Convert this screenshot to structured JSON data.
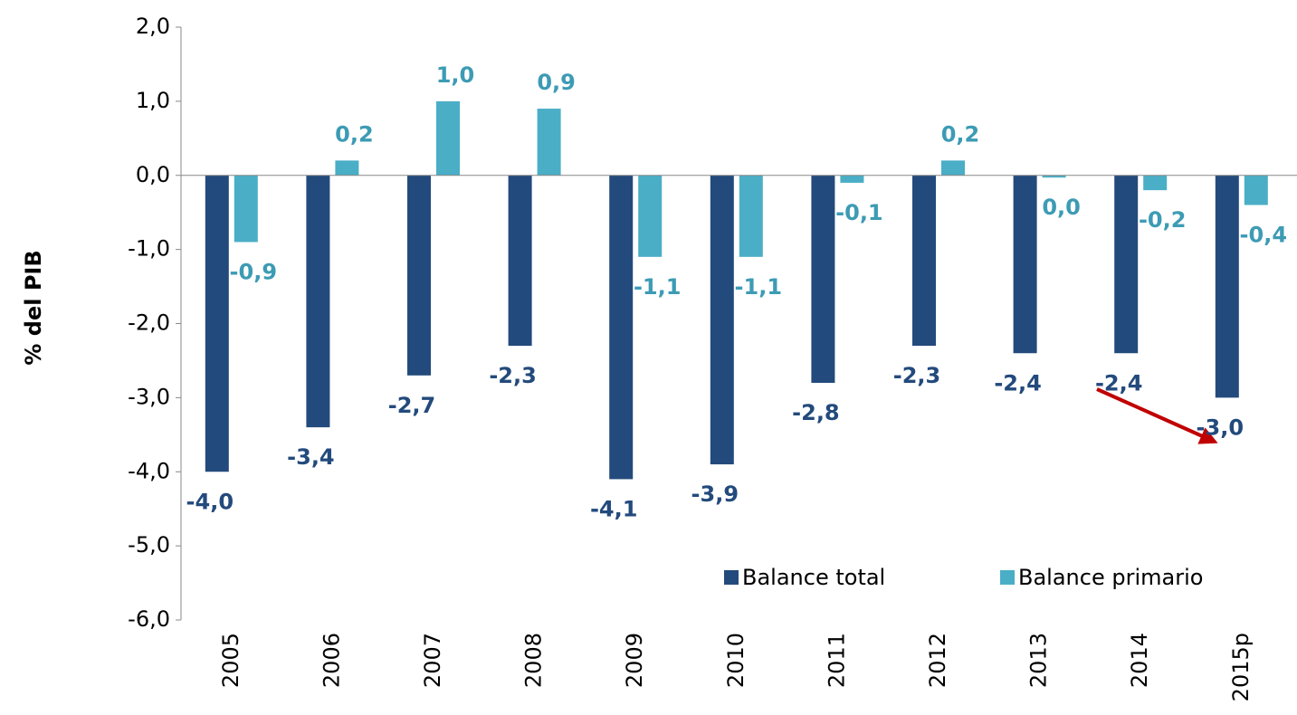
{
  "chart_data": {
    "type": "bar",
    "y_label": "% del PIB",
    "categories": [
      "2005",
      "2006",
      "2007",
      "2008",
      "2009",
      "2010",
      "2011",
      "2012",
      "2013",
      "2014",
      "2015p"
    ],
    "series": [
      {
        "name": "Balance total",
        "color": "#234a7c",
        "label_color": "#234a7c",
        "values": [
          -4.0,
          -3.4,
          -2.7,
          -2.3,
          -4.1,
          -3.9,
          -2.8,
          -2.3,
          -2.4,
          -2.4,
          -3.0
        ],
        "value_labels": [
          "-4,0",
          "-3,4",
          "-2,7",
          "-2,3",
          "-4,1",
          "-3,9",
          "-2,8",
          "-2,3",
          "-2,4",
          "-2,4",
          "-3,0"
        ]
      },
      {
        "name": "Balance primario",
        "color": "#4aaec6",
        "label_color": "#3d9bb4",
        "values": [
          -0.9,
          0.2,
          1.0,
          0.9,
          -1.1,
          -1.1,
          -0.1,
          0.2,
          -0.03,
          -0.2,
          -0.4
        ],
        "value_labels": [
          "-0,9",
          "0,2",
          "1,0",
          "0,9",
          "-1,1",
          "-1,1",
          "-0,1",
          "0,2",
          "0,0",
          "-0,2",
          "-0,4"
        ]
      }
    ],
    "ylim": [
      -6.0,
      2.0
    ],
    "yticks": [
      {
        "value": -6.0,
        "label": "-6,0"
      },
      {
        "value": -5.0,
        "label": "-5,0"
      },
      {
        "value": -4.0,
        "label": "-4,0"
      },
      {
        "value": -3.0,
        "label": "-3,0"
      },
      {
        "value": -2.0,
        "label": "-2,0"
      },
      {
        "value": -1.0,
        "label": "-1,0"
      },
      {
        "value": 0.0,
        "label": "0,0"
      },
      {
        "value": 1.0,
        "label": "1,0"
      },
      {
        "value": 2.0,
        "label": "2,0"
      }
    ],
    "grid": false
  }
}
